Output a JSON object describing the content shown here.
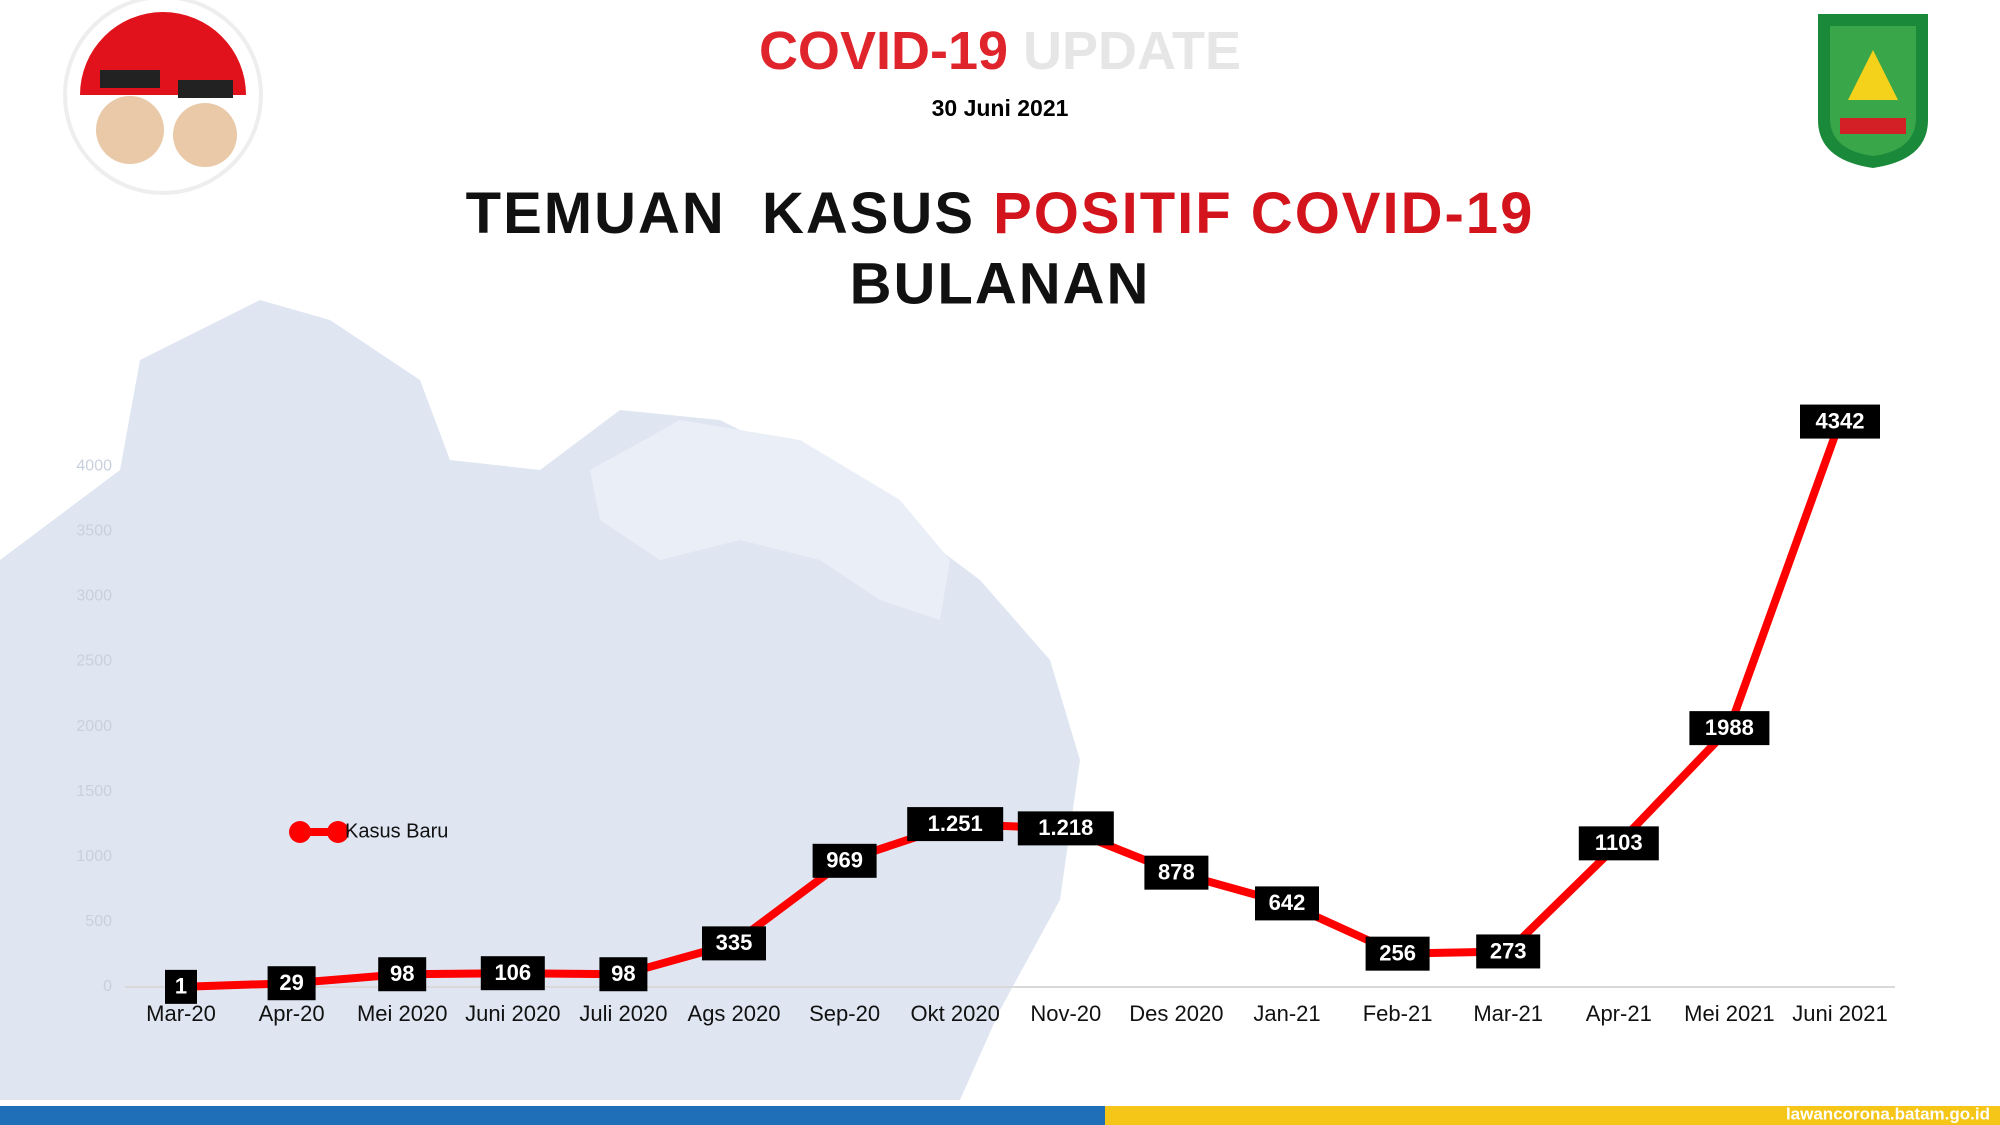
{
  "header": {
    "badge": [
      "COVID-19",
      "UPDATE"
    ],
    "date": "30 Juni 2021"
  },
  "footer": {
    "url": "lawancorona.batam.go.id"
  },
  "chart_data": {
    "type": "line",
    "title": [
      "TEMUAN  KASUS",
      "POSITIF COVID-19",
      "BULANAN"
    ],
    "categories": [
      "Mar-20",
      "Apr-20",
      "Mei 2020",
      "Juni 2020",
      "Juli 2020",
      "Ags 2020",
      "Sep-20",
      "Okt 2020",
      "Nov-20",
      "Des 2020",
      "Jan-21",
      "Feb-21",
      "Mar-21",
      "Apr-21",
      "Mei 2021",
      "Juni 2021"
    ],
    "series": [
      {
        "name": "Kasus Baru",
        "color": "#ff0000",
        "values": [
          1,
          29,
          98,
          106,
          98,
          335,
          969,
          1251,
          1218,
          878,
          642,
          256,
          273,
          1103,
          1988,
          4342
        ],
        "value_labels": [
          "1",
          "29",
          "98",
          "106",
          "98",
          "335",
          "969",
          "1.251",
          "1.218",
          "878",
          "642",
          "256",
          "273",
          "1103",
          "1988",
          "4342"
        ]
      }
    ],
    "ylim": [
      0,
      4500
    ],
    "yticks": [
      0,
      500,
      1000,
      1500,
      2000,
      2500,
      3000,
      3500,
      4000
    ],
    "legend": "left"
  }
}
